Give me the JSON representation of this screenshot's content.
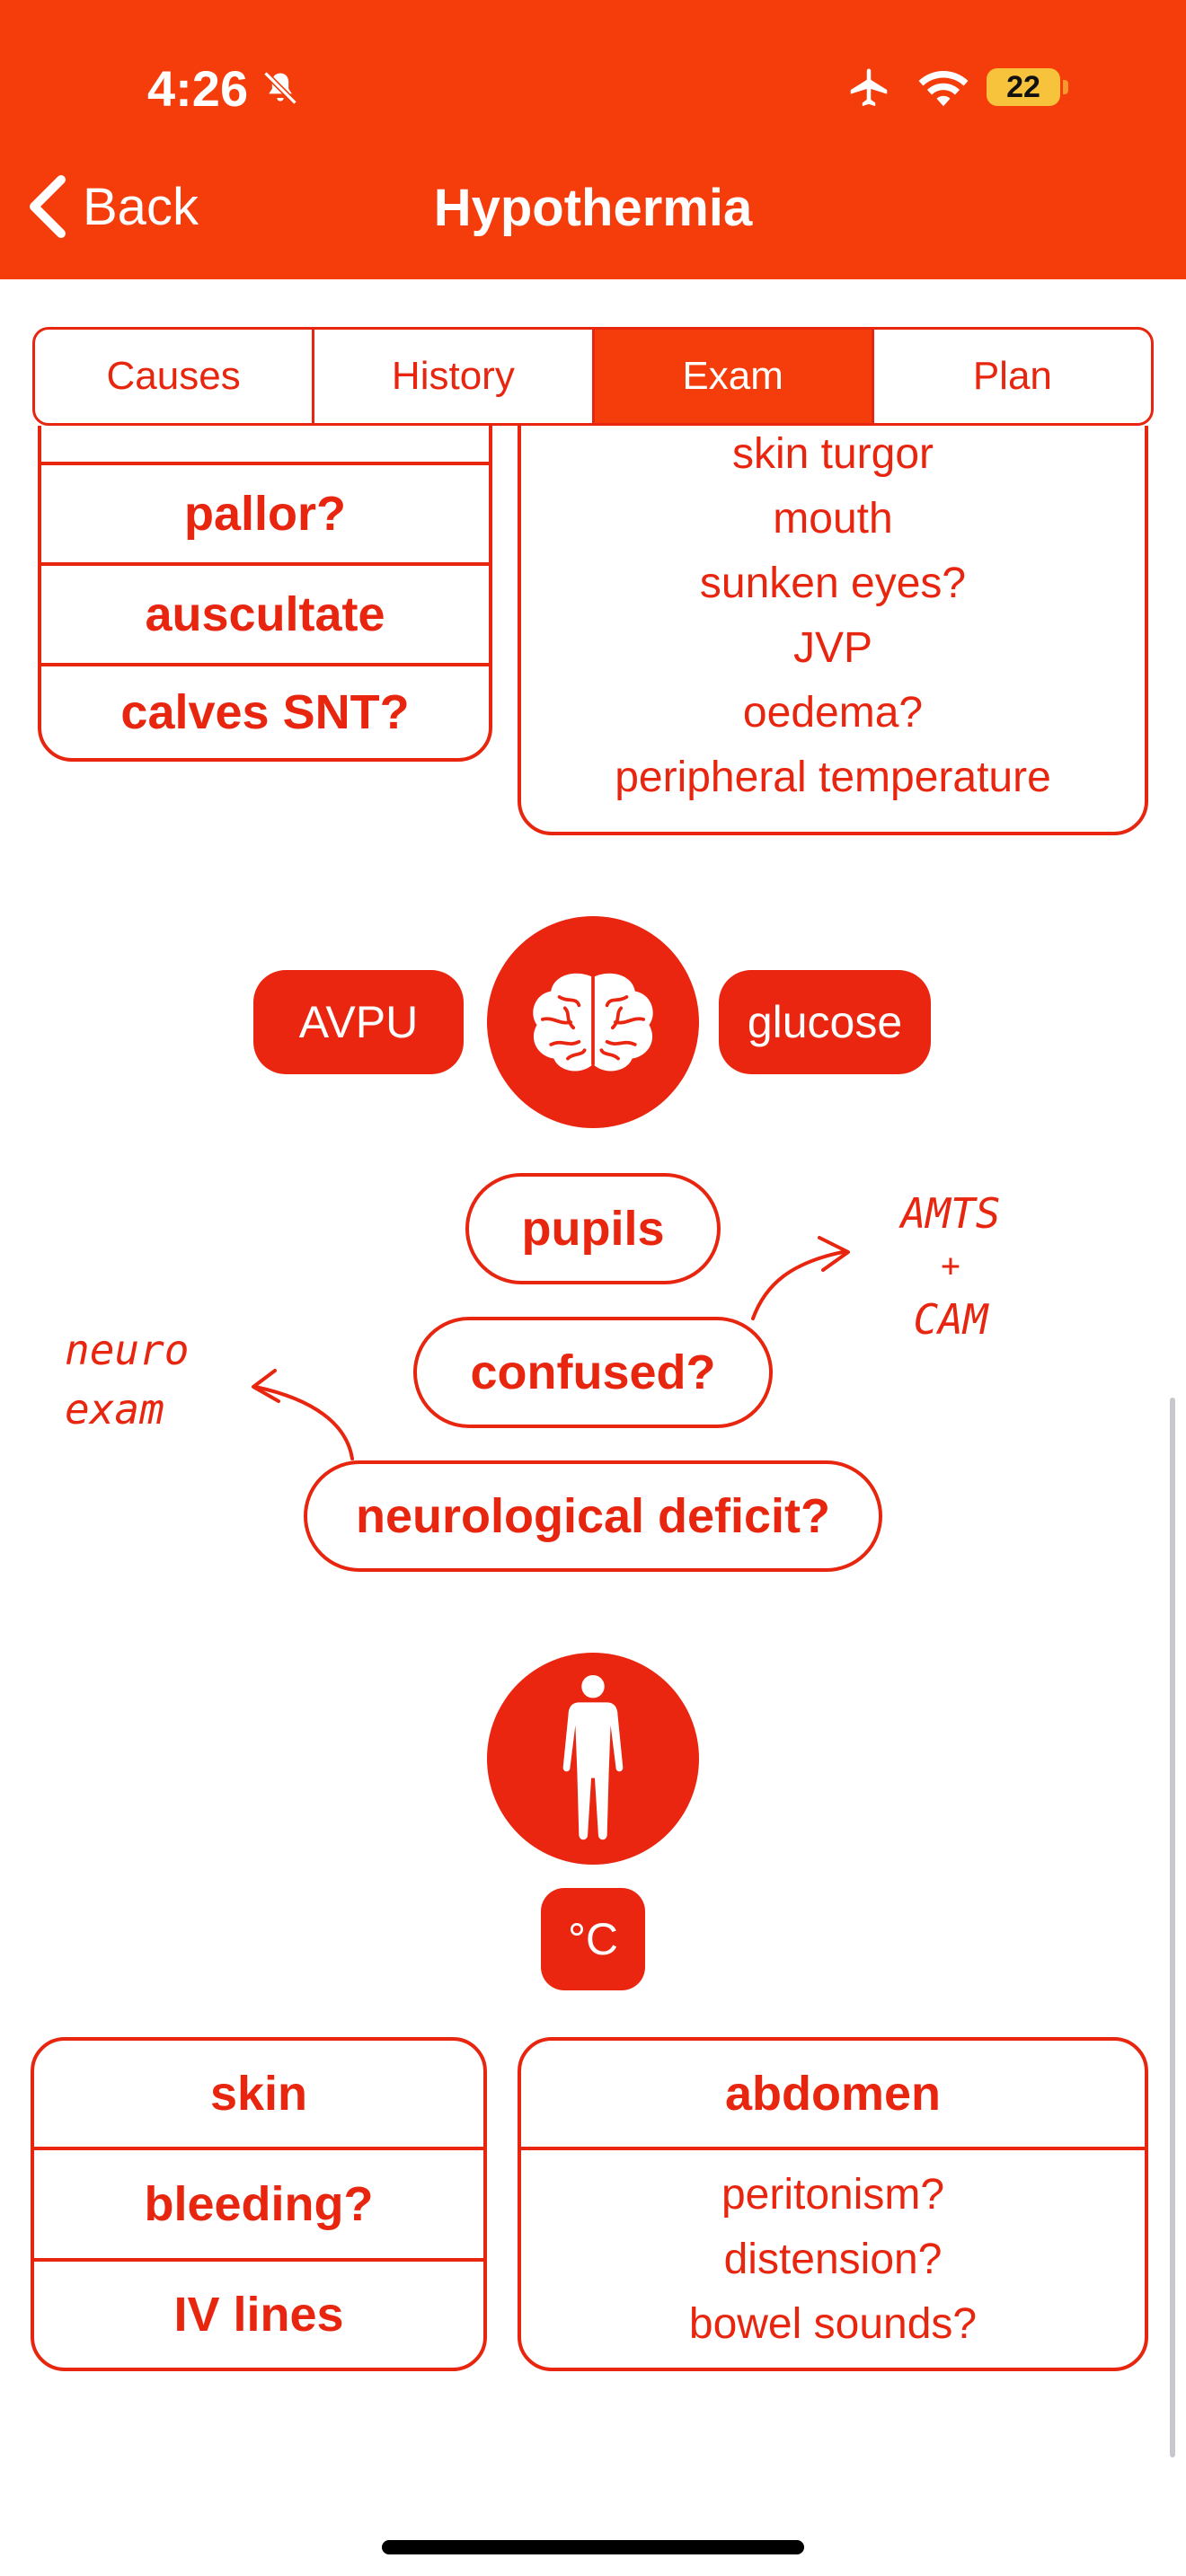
{
  "status_bar": {
    "time": "4:26",
    "battery": "22"
  },
  "nav": {
    "back_label": "Back",
    "title": "Hypothermia"
  },
  "tabs": [
    {
      "label": "Causes",
      "active": false
    },
    {
      "label": "History",
      "active": false
    },
    {
      "label": "Exam",
      "active": true
    },
    {
      "label": "Plan",
      "active": false
    }
  ],
  "upper_left_box": [
    "pallor?",
    "auscultate",
    "calves SNT?"
  ],
  "upper_right_box": [
    "skin turgor",
    "mouth",
    "sunken eyes?",
    "JVP",
    "oedema?",
    "peripheral temperature"
  ],
  "neuro": {
    "avpu": "AVPU",
    "glucose": "glucose",
    "pupils": "pupils",
    "confused": "confused?",
    "neuro_deficit": "neurological deficit?",
    "note_amts": [
      "AMTS",
      "+",
      "CAM"
    ],
    "note_neuro": [
      "neuro",
      "exam"
    ]
  },
  "body": {
    "temp": "°C"
  },
  "lower_left_box": [
    "skin",
    "bleeding?",
    "IV lines"
  ],
  "abdomen_box": {
    "title": "abdomen",
    "items": [
      "peritonism?",
      "distension?",
      "bowel sounds?"
    ]
  },
  "colors": {
    "accent": "#f53c0b",
    "red": "#e8260f"
  },
  "icons": [
    "bell-slash-icon",
    "airplane-icon",
    "wifi-icon",
    "chevron-left-icon",
    "brain-icon",
    "human-body-icon"
  ]
}
